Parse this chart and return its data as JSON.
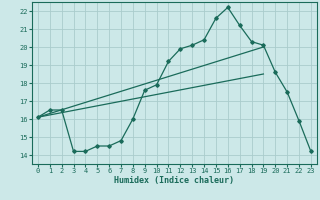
{
  "xlabel": "Humidex (Indice chaleur)",
  "bg_color": "#cce8e8",
  "grid_color": "#aacccc",
  "line_color": "#1a6b5a",
  "xlim": [
    -0.5,
    23.5
  ],
  "ylim": [
    13.5,
    22.5
  ],
  "xticks": [
    0,
    1,
    2,
    3,
    4,
    5,
    6,
    7,
    8,
    9,
    10,
    11,
    12,
    13,
    14,
    15,
    16,
    17,
    18,
    19,
    20,
    21,
    22,
    23
  ],
  "yticks": [
    14,
    15,
    16,
    17,
    18,
    19,
    20,
    21,
    22
  ],
  "line1_x": [
    0,
    1,
    2,
    3,
    4,
    5,
    6,
    7,
    8,
    9,
    10,
    11,
    12,
    13,
    14,
    15,
    16,
    17,
    18,
    19,
    20,
    21,
    22,
    23
  ],
  "line1_y": [
    16.1,
    16.5,
    16.5,
    14.2,
    14.2,
    14.5,
    14.5,
    14.8,
    16.0,
    17.6,
    17.9,
    19.2,
    19.9,
    20.1,
    20.4,
    21.6,
    22.2,
    21.2,
    20.3,
    20.1,
    18.6,
    17.5,
    15.9,
    14.2
  ],
  "line2_x": [
    0,
    19
  ],
  "line2_y": [
    16.1,
    20.0
  ],
  "line3_x": [
    0,
    19
  ],
  "line3_y": [
    16.1,
    18.5
  ]
}
